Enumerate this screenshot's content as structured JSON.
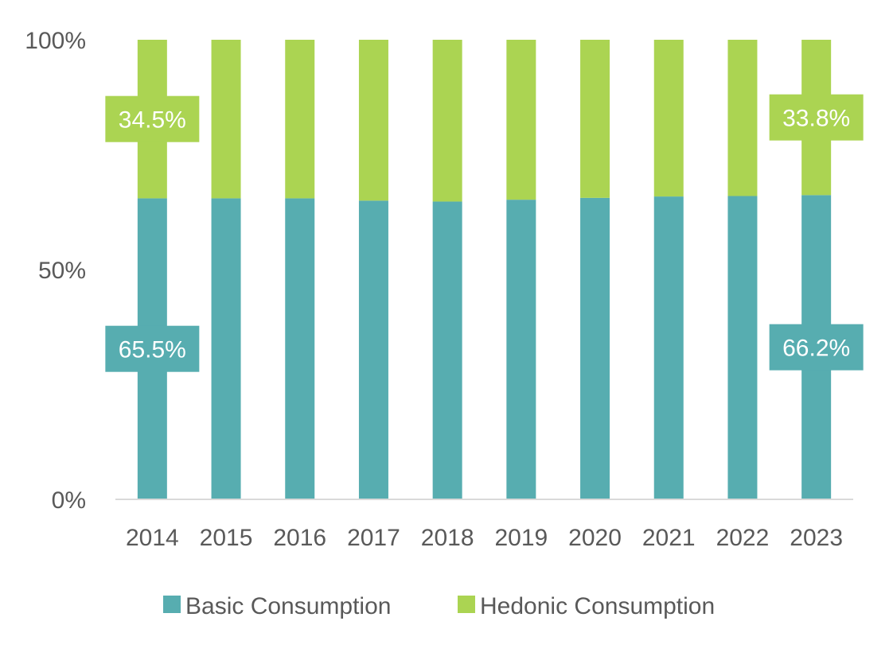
{
  "chart_data": {
    "type": "bar",
    "stacked": true,
    "percent": true,
    "categories": [
      "2014",
      "2015",
      "2016",
      "2017",
      "2018",
      "2019",
      "2020",
      "2021",
      "2022",
      "2023"
    ],
    "series": [
      {
        "name": "Basic Consumption",
        "color": "#57ADB0",
        "values": [
          65.5,
          65.5,
          65.5,
          65.0,
          64.8,
          65.2,
          65.6,
          65.9,
          66.0,
          66.2
        ]
      },
      {
        "name": "Hedonic Consumption",
        "color": "#ABD452",
        "values": [
          34.5,
          34.5,
          34.5,
          35.0,
          35.2,
          34.8,
          34.4,
          34.1,
          34.0,
          33.8
        ]
      }
    ],
    "data_labels": [
      {
        "series": 0,
        "category": "2014",
        "text": "65.5%"
      },
      {
        "series": 1,
        "category": "2014",
        "text": "34.5%"
      },
      {
        "series": 0,
        "category": "2023",
        "text": "66.2%"
      },
      {
        "series": 1,
        "category": "2023",
        "text": "33.8%"
      }
    ],
    "yticks": [
      {
        "value": 0,
        "label": "0%"
      },
      {
        "value": 50,
        "label": "50%"
      },
      {
        "value": 100,
        "label": "100%"
      }
    ],
    "ylim": [
      0,
      100
    ],
    "title": "",
    "xlabel": "",
    "ylabel": "",
    "grid": false,
    "legend_position": "bottom"
  }
}
